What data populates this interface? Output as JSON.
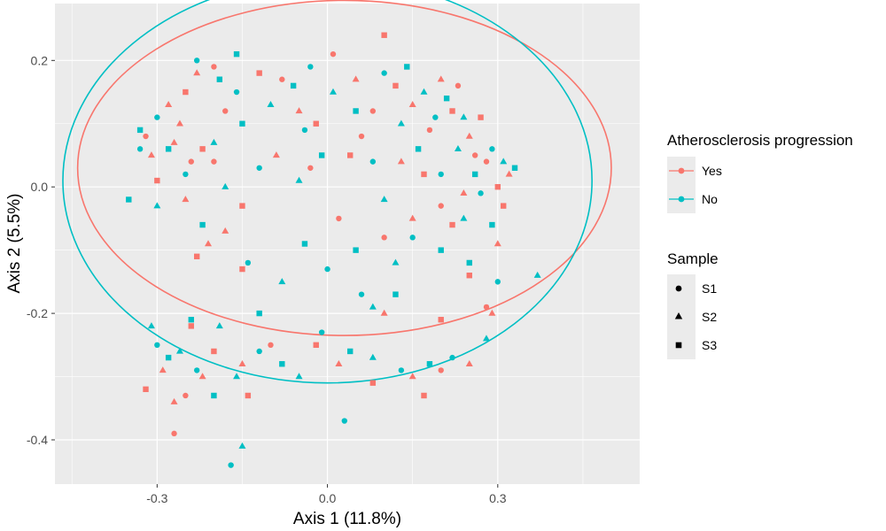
{
  "chart_data": {
    "type": "scatter",
    "xlabel": "Axis 1 (11.8%)",
    "ylabel": "Axis 2 (5.5%)",
    "xlim": [
      -0.48,
      0.55
    ],
    "ylim": [
      -0.47,
      0.29
    ],
    "xticks": [
      -0.3,
      0.0,
      0.3
    ],
    "xtick_labels": [
      "-0.3",
      "0.0",
      "0.3"
    ],
    "yticks": [
      -0.4,
      -0.2,
      0.0,
      0.2
    ],
    "ytick_labels": [
      "-0.4",
      "-0.2",
      "0.0",
      "0.2"
    ],
    "grid": true,
    "colors": {
      "Yes": "#F8766D",
      "No": "#00BFC4",
      "panel": "#EBEBEB",
      "grid": "#FFFFFF"
    },
    "legend": {
      "placement": "right",
      "color_title": "Atherosclerosis progression",
      "color_items": [
        "Yes",
        "No"
      ],
      "shape_title": "Sample",
      "shape_items": [
        {
          "label": "S1",
          "shape": "circle"
        },
        {
          "label": "S2",
          "shape": "triangle"
        },
        {
          "label": "S3",
          "shape": "square"
        }
      ]
    },
    "ellipses": [
      {
        "group": "Yes",
        "cx": 0.03,
        "cy": 0.03,
        "rx": 0.47,
        "ry": 0.265,
        "rotation_deg": 0
      },
      {
        "group": "No",
        "cx": 0.0,
        "cy": 0.01,
        "rx": 0.466,
        "ry": 0.32,
        "rotation_deg": 0
      }
    ],
    "series": [
      {
        "group": "Yes",
        "points": [
          [
            0.01,
            0.21,
            "S1"
          ],
          [
            0.1,
            0.24,
            "S3"
          ],
          [
            -0.23,
            0.18,
            "S2"
          ],
          [
            -0.2,
            0.19,
            "S1"
          ],
          [
            -0.28,
            0.13,
            "S2"
          ],
          [
            -0.25,
            0.15,
            "S3"
          ],
          [
            -0.32,
            0.08,
            "S1"
          ],
          [
            -0.27,
            0.07,
            "S2"
          ],
          [
            -0.22,
            0.06,
            "S3"
          ],
          [
            -0.3,
            0.01,
            "S3"
          ],
          [
            -0.25,
            -0.02,
            "S2"
          ],
          [
            -0.2,
            0.04,
            "S1"
          ],
          [
            -0.12,
            0.18,
            "S3"
          ],
          [
            -0.08,
            0.17,
            "S1"
          ],
          [
            -0.05,
            0.12,
            "S2"
          ],
          [
            -0.02,
            0.1,
            "S3"
          ],
          [
            0.05,
            0.17,
            "S2"
          ],
          [
            0.08,
            0.12,
            "S1"
          ],
          [
            0.12,
            0.16,
            "S3"
          ],
          [
            0.15,
            0.13,
            "S2"
          ],
          [
            0.18,
            0.09,
            "S1"
          ],
          [
            0.22,
            0.12,
            "S3"
          ],
          [
            0.25,
            0.08,
            "S2"
          ],
          [
            0.28,
            0.04,
            "S1"
          ],
          [
            0.3,
            0.0,
            "S3"
          ],
          [
            0.32,
            0.02,
            "S2"
          ],
          [
            0.2,
            -0.03,
            "S1"
          ],
          [
            0.22,
            -0.06,
            "S3"
          ],
          [
            0.15,
            -0.05,
            "S2"
          ],
          [
            0.1,
            -0.08,
            "S1"
          ],
          [
            -0.15,
            -0.03,
            "S3"
          ],
          [
            -0.18,
            -0.07,
            "S2"
          ],
          [
            -0.23,
            -0.11,
            "S3"
          ],
          [
            -0.15,
            -0.13,
            "S3"
          ],
          [
            -0.21,
            -0.09,
            "S2"
          ],
          [
            -0.03,
            0.03,
            "S1"
          ],
          [
            0.06,
            0.08,
            "S1"
          ],
          [
            0.13,
            0.04,
            "S2"
          ],
          [
            0.17,
            0.02,
            "S3"
          ],
          [
            0.24,
            -0.01,
            "S2"
          ],
          [
            0.26,
            0.05,
            "S1"
          ],
          [
            0.3,
            -0.09,
            "S2"
          ],
          [
            0.25,
            -0.14,
            "S3"
          ],
          [
            0.28,
            -0.19,
            "S1"
          ],
          [
            0.2,
            -0.21,
            "S3"
          ],
          [
            0.1,
            -0.2,
            "S2"
          ],
          [
            -0.02,
            -0.25,
            "S3"
          ],
          [
            0.08,
            -0.31,
            "S3"
          ],
          [
            0.15,
            -0.3,
            "S2"
          ],
          [
            0.2,
            -0.29,
            "S1"
          ],
          [
            0.25,
            -0.28,
            "S2"
          ],
          [
            0.29,
            -0.2,
            "S2"
          ],
          [
            -0.32,
            -0.32,
            "S3"
          ],
          [
            -0.29,
            -0.29,
            "S2"
          ],
          [
            -0.25,
            -0.33,
            "S1"
          ],
          [
            -0.27,
            -0.39,
            "S1"
          ],
          [
            -0.22,
            -0.3,
            "S2"
          ],
          [
            -0.2,
            -0.26,
            "S3"
          ],
          [
            -0.15,
            -0.28,
            "S2"
          ],
          [
            -0.14,
            -0.33,
            "S3"
          ],
          [
            -0.1,
            -0.25,
            "S1"
          ],
          [
            -0.27,
            -0.34,
            "S2"
          ],
          [
            -0.24,
            -0.22,
            "S3"
          ],
          [
            0.02,
            -0.28,
            "S2"
          ],
          [
            0.17,
            -0.33,
            "S3"
          ],
          [
            -0.18,
            0.12,
            "S1"
          ],
          [
            -0.26,
            0.1,
            "S2"
          ],
          [
            -0.24,
            0.04,
            "S1"
          ],
          [
            0.2,
            0.17,
            "S2"
          ],
          [
            0.23,
            0.16,
            "S1"
          ],
          [
            0.27,
            0.11,
            "S3"
          ],
          [
            0.31,
            -0.03,
            "S3"
          ],
          [
            -0.09,
            0.05,
            "S2"
          ],
          [
            0.04,
            0.05,
            "S3"
          ],
          [
            0.02,
            -0.05,
            "S1"
          ],
          [
            -0.31,
            0.05,
            "S2"
          ]
        ]
      },
      {
        "group": "No",
        "points": [
          [
            -0.16,
            0.21,
            "S3"
          ],
          [
            -0.23,
            0.2,
            "S1"
          ],
          [
            -0.19,
            0.17,
            "S3"
          ],
          [
            -0.3,
            0.11,
            "S1"
          ],
          [
            -0.33,
            0.09,
            "S3"
          ],
          [
            -0.28,
            0.06,
            "S3"
          ],
          [
            -0.35,
            -0.02,
            "S3"
          ],
          [
            -0.3,
            -0.03,
            "S2"
          ],
          [
            -0.25,
            0.02,
            "S1"
          ],
          [
            -0.18,
            0.0,
            "S2"
          ],
          [
            -0.15,
            0.1,
            "S3"
          ],
          [
            -0.1,
            0.13,
            "S2"
          ],
          [
            -0.06,
            0.16,
            "S3"
          ],
          [
            -0.03,
            0.19,
            "S1"
          ],
          [
            0.01,
            0.15,
            "S2"
          ],
          [
            0.05,
            0.12,
            "S3"
          ],
          [
            0.1,
            0.18,
            "S1"
          ],
          [
            0.14,
            0.19,
            "S3"
          ],
          [
            0.17,
            0.15,
            "S2"
          ],
          [
            0.19,
            0.11,
            "S1"
          ],
          [
            0.21,
            0.14,
            "S3"
          ],
          [
            0.23,
            0.06,
            "S2"
          ],
          [
            0.26,
            0.02,
            "S3"
          ],
          [
            0.29,
            0.06,
            "S1"
          ],
          [
            0.31,
            0.04,
            "S2"
          ],
          [
            0.33,
            0.03,
            "S3"
          ],
          [
            0.27,
            -0.01,
            "S1"
          ],
          [
            0.24,
            -0.05,
            "S2"
          ],
          [
            0.2,
            -0.1,
            "S3"
          ],
          [
            0.15,
            -0.08,
            "S1"
          ],
          [
            0.12,
            -0.12,
            "S2"
          ],
          [
            0.05,
            -0.1,
            "S3"
          ],
          [
            0.0,
            -0.13,
            "S1"
          ],
          [
            -0.04,
            -0.09,
            "S3"
          ],
          [
            -0.08,
            -0.15,
            "S2"
          ],
          [
            -0.14,
            -0.12,
            "S1"
          ],
          [
            -0.12,
            0.03,
            "S1"
          ],
          [
            -0.05,
            0.01,
            "S2"
          ],
          [
            0.08,
            0.04,
            "S1"
          ],
          [
            0.1,
            -0.02,
            "S2"
          ],
          [
            0.16,
            0.06,
            "S3"
          ],
          [
            0.25,
            -0.12,
            "S3"
          ],
          [
            0.3,
            -0.15,
            "S1"
          ],
          [
            0.37,
            -0.14,
            "S2"
          ],
          [
            0.28,
            -0.24,
            "S2"
          ],
          [
            0.22,
            -0.27,
            "S1"
          ],
          [
            0.18,
            -0.28,
            "S3"
          ],
          [
            0.13,
            -0.29,
            "S1"
          ],
          [
            0.08,
            -0.27,
            "S2"
          ],
          [
            0.04,
            -0.26,
            "S3"
          ],
          [
            -0.01,
            -0.23,
            "S1"
          ],
          [
            -0.05,
            -0.3,
            "S2"
          ],
          [
            -0.08,
            -0.28,
            "S3"
          ],
          [
            0.03,
            -0.37,
            "S1"
          ],
          [
            -0.12,
            -0.26,
            "S1"
          ],
          [
            -0.16,
            -0.3,
            "S2"
          ],
          [
            -0.15,
            -0.41,
            "S2"
          ],
          [
            -0.17,
            -0.44,
            "S1"
          ],
          [
            -0.2,
            -0.33,
            "S3"
          ],
          [
            -0.23,
            -0.29,
            "S1"
          ],
          [
            -0.26,
            -0.26,
            "S2"
          ],
          [
            -0.28,
            -0.27,
            "S3"
          ],
          [
            -0.31,
            -0.22,
            "S2"
          ],
          [
            -0.3,
            -0.25,
            "S1"
          ],
          [
            -0.24,
            -0.21,
            "S3"
          ],
          [
            -0.19,
            -0.22,
            "S2"
          ],
          [
            -0.12,
            -0.2,
            "S3"
          ],
          [
            0.08,
            -0.19,
            "S2"
          ],
          [
            0.06,
            -0.17,
            "S1"
          ],
          [
            0.12,
            -0.17,
            "S3"
          ],
          [
            -0.04,
            0.09,
            "S1"
          ],
          [
            -0.01,
            0.05,
            "S3"
          ],
          [
            0.13,
            0.1,
            "S2"
          ],
          [
            0.2,
            0.02,
            "S1"
          ],
          [
            0.24,
            0.11,
            "S2"
          ],
          [
            0.29,
            -0.06,
            "S3"
          ],
          [
            -0.2,
            0.07,
            "S2"
          ],
          [
            -0.16,
            0.15,
            "S1"
          ],
          [
            -0.22,
            -0.06,
            "S3"
          ],
          [
            -0.33,
            0.06,
            "S1"
          ]
        ]
      }
    ]
  }
}
